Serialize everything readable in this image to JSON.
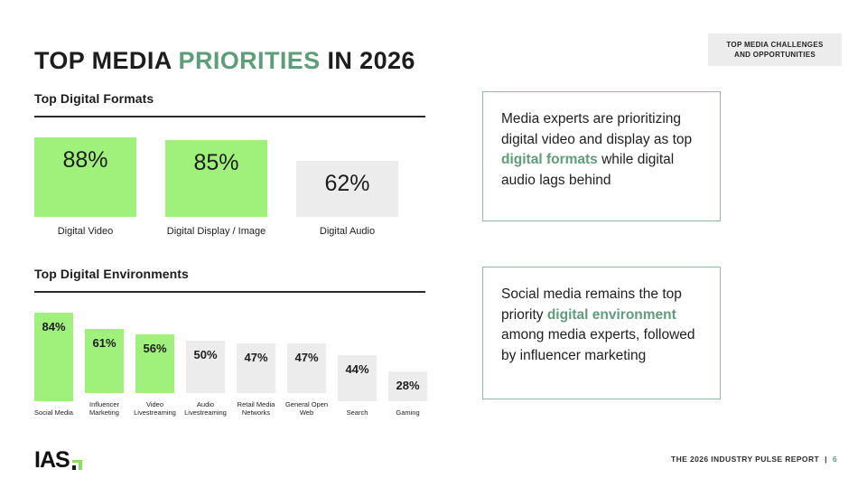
{
  "page": {
    "title_segments": [
      {
        "text": "TOP MEDIA ",
        "accent": false
      },
      {
        "text": "PRIORITIES",
        "accent": true
      },
      {
        "text": " IN 2026",
        "accent": false
      }
    ],
    "badge": {
      "line1": "TOP MEDIA CHALLENGES",
      "line2": "AND OPPORTUNITIES"
    },
    "footer": {
      "logo_text": "IAS",
      "report_label": "THE 2026 INDUSTRY PULSE REPORT",
      "separator": "|",
      "page_number": "6"
    }
  },
  "colors": {
    "bar_green": "#a0f07c",
    "bar_gray": "#ececec",
    "accent_text_green": "#5d9e78",
    "callout_border_green": "#8fbc9f",
    "badge_gray": "#ececec"
  },
  "callouts": [
    {
      "segments": [
        {
          "text": "Media experts are prioritizing digital video and display as top ",
          "accent": false
        },
        {
          "text": "digital formats",
          "accent": true
        },
        {
          "text": " while digital audio lags behind",
          "accent": false
        }
      ]
    },
    {
      "segments": [
        {
          "text": "Social media remains the top priority ",
          "accent": false
        },
        {
          "text": "digital environment",
          "accent": true
        },
        {
          "text": " among media experts, followed by influencer marketing",
          "accent": false
        }
      ]
    }
  ],
  "chart_data": [
    {
      "type": "bar",
      "title": "Top Digital Formats",
      "categories": [
        "Digital Video",
        "Digital Display / Image",
        "Digital Audio"
      ],
      "values": [
        88,
        85,
        62
      ],
      "unit": "%",
      "highlighted": [
        true,
        true,
        false
      ],
      "ylim": [
        0,
        100
      ],
      "legend": "none",
      "grid": false,
      "note": "green bars = top priorities, gray bar = lagging"
    },
    {
      "type": "bar",
      "title": "Top Digital Environments",
      "categories": [
        "Social Media",
        "Influencer Marketing",
        "Video Livestreaming",
        "Audio Livestreaming",
        "Retail Media Networks",
        "General Open Web",
        "Search",
        "Gaming"
      ],
      "values": [
        84,
        61,
        56,
        50,
        47,
        47,
        44,
        28
      ],
      "unit": "%",
      "highlighted": [
        true,
        true,
        true,
        false,
        false,
        false,
        false,
        false
      ],
      "ylim": [
        0,
        100
      ],
      "legend": "none",
      "grid": false,
      "note": "green bars = top priorities, gray bars = lower priorities"
    }
  ]
}
